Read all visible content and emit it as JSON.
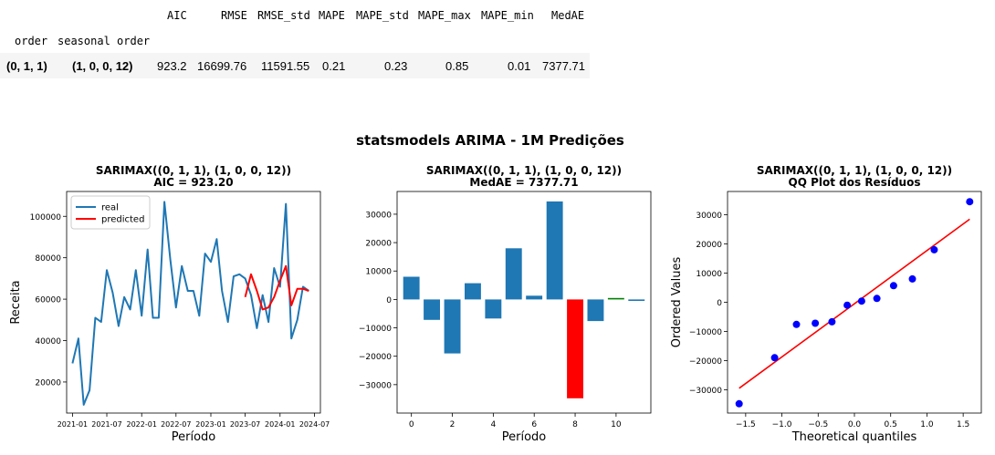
{
  "table": {
    "columns": [
      "AIC",
      "RMSE",
      "RMSE_std",
      "MAPE",
      "MAPE_std",
      "MAPE_max",
      "MAPE_min",
      "MedAE"
    ],
    "index_names": [
      "order",
      "seasonal order"
    ],
    "rows": [
      {
        "order": "(0, 1, 1)",
        "seasonal_order": "(1, 0, 0, 12)",
        "values": [
          "923.2",
          "16699.76",
          "11591.55",
          "0.21",
          "0.23",
          "0.85",
          "0.01",
          "7377.71"
        ]
      }
    ]
  },
  "figure": {
    "suptitle": "statsmodels ARIMA - 1M Predições"
  },
  "chart_data": [
    {
      "type": "line",
      "title": "SARIMAX((0, 1, 1), (1, 0, 0, 12))",
      "subtitle": "AIC = 923.20",
      "xlabel": "Período",
      "ylabel": "Receita",
      "xlim": [
        "2020-12-01",
        "2024-08-01"
      ],
      "ylim": [
        5000,
        112000
      ],
      "x_ticks": [
        "2021-01",
        "2021-07",
        "2022-01",
        "2022-07",
        "2023-01",
        "2023-07",
        "2024-01",
        "2024-07"
      ],
      "y_ticks": [
        20000,
        40000,
        60000,
        80000,
        100000
      ],
      "legend_position": "upper-left",
      "series": [
        {
          "name": "real",
          "color": "#1f77b4",
          "x": [
            "2021-01",
            "2021-02",
            "2021-03",
            "2021-04",
            "2021-05",
            "2021-06",
            "2021-07",
            "2021-08",
            "2021-09",
            "2021-10",
            "2021-11",
            "2021-12",
            "2022-01",
            "2022-02",
            "2022-03",
            "2022-04",
            "2022-05",
            "2022-06",
            "2022-07",
            "2022-08",
            "2022-09",
            "2022-10",
            "2022-11",
            "2022-12",
            "2023-01",
            "2023-02",
            "2023-03",
            "2023-04",
            "2023-05",
            "2023-06",
            "2023-07",
            "2023-08",
            "2023-09",
            "2023-10",
            "2023-11",
            "2023-12",
            "2024-01",
            "2024-02",
            "2024-03",
            "2024-04",
            "2024-05",
            "2024-06"
          ],
          "y": [
            29000,
            41000,
            9000,
            16000,
            51000,
            49000,
            74000,
            63000,
            47000,
            61000,
            55000,
            74000,
            52000,
            84000,
            51000,
            51000,
            107000,
            79000,
            56000,
            76000,
            64000,
            64000,
            52000,
            82000,
            78000,
            89000,
            64000,
            49000,
            71000,
            72000,
            70000,
            62000,
            46000,
            62000,
            49000,
            75000,
            66000,
            106000,
            41000,
            50000,
            66000,
            64000
          ]
        },
        {
          "name": "predicted",
          "color": "#ff0000",
          "x": [
            "2023-07",
            "2023-08",
            "2023-09",
            "2023-10",
            "2023-11",
            "2023-12",
            "2024-01",
            "2024-02",
            "2024-03",
            "2024-04",
            "2024-05",
            "2024-06"
          ],
          "y": [
            61000,
            72000,
            64000,
            55000,
            56000,
            61000,
            69000,
            76000,
            57000,
            65000,
            65000,
            64000
          ]
        }
      ]
    },
    {
      "type": "bar",
      "title": "SARIMAX((0, 1, 1), (1, 0, 0, 12))",
      "subtitle": "MedAE = 7377.71",
      "xlabel": "Período",
      "ylabel": "",
      "xlim": [
        -0.7,
        11.7
      ],
      "ylim": [
        -40000,
        38000
      ],
      "x_ticks": [
        0,
        2,
        4,
        6,
        8,
        10
      ],
      "y_ticks": [
        -30000,
        -20000,
        -10000,
        0,
        10000,
        20000,
        30000
      ],
      "categories": [
        0,
        1,
        2,
        3,
        4,
        5,
        6,
        7,
        8,
        9,
        10,
        11
      ],
      "values": [
        8000,
        -7200,
        -19000,
        5700,
        -6700,
        18000,
        1300,
        34500,
        -34800,
        -7600,
        500,
        -500
      ],
      "colors": [
        "#1f77b4",
        "#1f77b4",
        "#1f77b4",
        "#1f77b4",
        "#1f77b4",
        "#1f77b4",
        "#1f77b4",
        "#1f77b4",
        "#ff0000",
        "#1f77b4",
        "#008000",
        "#1f77b4"
      ]
    },
    {
      "type": "scatter",
      "title": "SARIMAX((0, 1, 1), (1, 0, 0, 12))",
      "subtitle": "QQ Plot dos Resíduos",
      "xlabel": "Theoretical quantiles",
      "ylabel": "Ordered Values",
      "xlim": [
        -1.75,
        1.75
      ],
      "ylim": [
        -38000,
        38000
      ],
      "x_ticks": [
        -1.5,
        -1.0,
        -0.5,
        0.0,
        0.5,
        1.0,
        1.5
      ],
      "y_ticks": [
        -30000,
        -20000,
        -10000,
        0,
        10000,
        20000,
        30000
      ],
      "points": {
        "color": "#0000ff",
        "x": [
          -1.59,
          -1.1,
          -0.8,
          -0.54,
          -0.31,
          -0.1,
          0.1,
          0.31,
          0.54,
          0.8,
          1.1,
          1.59
        ],
        "y": [
          -34800,
          -19000,
          -7600,
          -7200,
          -6700,
          -1000,
          400,
          1300,
          5700,
          8000,
          18000,
          34500
        ]
      },
      "fit_line": {
        "color": "#ff0000",
        "x": [
          -1.59,
          1.59
        ],
        "y": [
          -29500,
          28500
        ]
      }
    }
  ]
}
